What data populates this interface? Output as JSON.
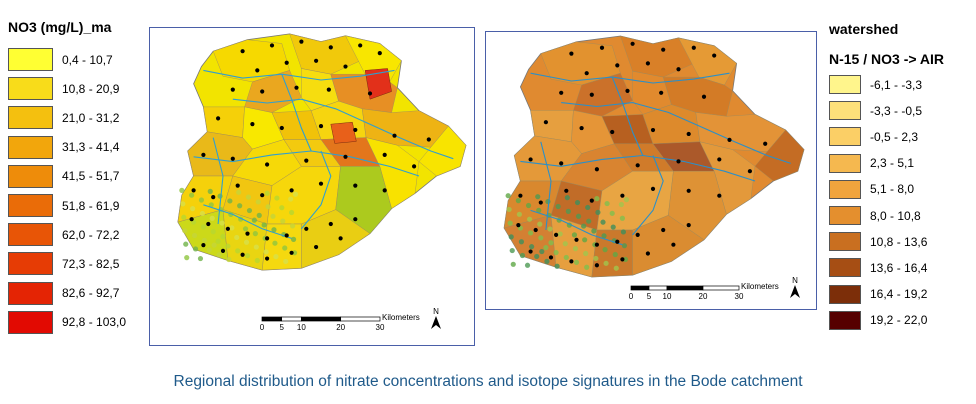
{
  "left_legend": {
    "title": "NO3 (mg/L)_ma",
    "classes": [
      {
        "label": "0,4 - 10,7",
        "color": "#ffff33"
      },
      {
        "label": "10,8 - 20,9",
        "color": "#f8dc1a"
      },
      {
        "label": "21,0 - 31,2",
        "color": "#f4c00f"
      },
      {
        "label": "31,3 - 41,4",
        "color": "#f2a60c"
      },
      {
        "label": "41,5 - 51,7",
        "color": "#ee8c0a"
      },
      {
        "label": "51,8 - 61,9",
        "color": "#ea6c08"
      },
      {
        "label": "62,0 - 72,2",
        "color": "#e85506"
      },
      {
        "label": "72,3 - 82,5",
        "color": "#e63c05"
      },
      {
        "label": "82,6 - 92,7",
        "color": "#e42404"
      },
      {
        "label": "92,8 - 103,0",
        "color": "#e20a02"
      }
    ]
  },
  "right_legend": {
    "title_line1": "watershed",
    "title_line2": "N-15 / NO3 -> AIR",
    "classes": [
      {
        "label": "-6,1 - -3,3",
        "color": "#fff58c"
      },
      {
        "label": "-3,3 - -0,5",
        "color": "#fde07a"
      },
      {
        "label": "-0,5 - 2,3",
        "color": "#fbcf66"
      },
      {
        "label": "2,3 - 5,1",
        "color": "#f5b84f"
      },
      {
        "label": "5,1 - 8,0",
        "color": "#f0a43d"
      },
      {
        "label": "8,0 - 10,8",
        "color": "#e48f2e"
      },
      {
        "label": "10,8 - 13,6",
        "color": "#c96f20"
      },
      {
        "label": "13,6 - 16,4",
        "color": "#a64e14"
      },
      {
        "label": "16,4 - 19,2",
        "color": "#7c2e09"
      },
      {
        "label": "19,2 - 22,0",
        "color": "#560000"
      }
    ]
  },
  "scalebar": {
    "ticks": [
      "0",
      "5",
      "10",
      "20",
      "30"
    ],
    "unit": "Kilometers",
    "north": "N"
  },
  "caption": "Regional distribution of nitrate concentrations and isotope signatures in the Bode catchment"
}
